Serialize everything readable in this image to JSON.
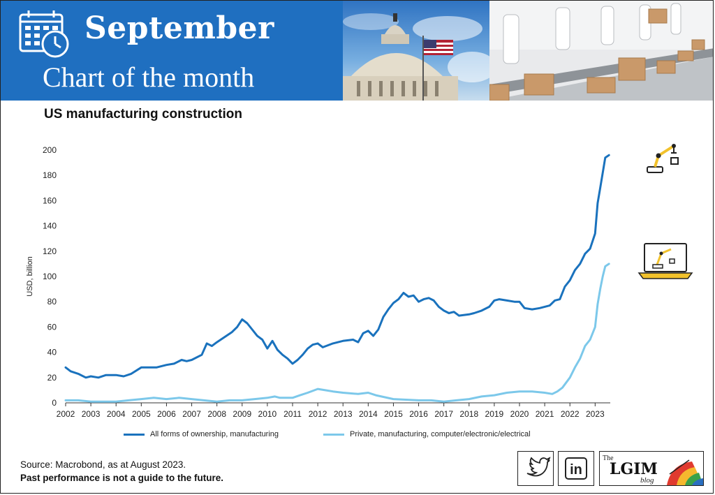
{
  "banner": {
    "headline": "September",
    "subheadline": "Chart of the month",
    "bg_color": "#1f6fc0"
  },
  "icons": {
    "calendar": "calendar-clock-icon",
    "robot_arm": "robot-arm-icon",
    "robot_laptop": "robot-laptop-icon",
    "twitter": "twitter-bird-icon",
    "linkedin": "linkedin-icon"
  },
  "footer": {
    "source": "Source: Macrobond, as at August 2023.",
    "disclaimer": "Past performance is not a guide to the future."
  },
  "social": {
    "linkedin_label": "in",
    "blog_the": "The",
    "blog_name": "LGIM",
    "blog_word": "blog"
  },
  "chart_data": {
    "type": "line",
    "title": "US manufacturing construction",
    "ylabel": "USD, billion",
    "xlabel": "",
    "ylim": [
      0,
      200
    ],
    "yticks": [
      0,
      20,
      40,
      60,
      80,
      100,
      120,
      140,
      160,
      180,
      200
    ],
    "xlim": [
      2002,
      2023.6
    ],
    "xticks": [
      "2002",
      "2003",
      "2004",
      "2005",
      "2006",
      "2007",
      "2008",
      "2009",
      "2010",
      "2011",
      "2012",
      "2013",
      "2014",
      "2015",
      "2016",
      "2017",
      "2018",
      "2019",
      "2020",
      "2021",
      "2022",
      "2023"
    ],
    "grid": false,
    "legend_position": "bottom",
    "series": [
      {
        "name": "All forms of ownership, manufacturing",
        "color": "#1a72bd",
        "points": [
          [
            2002.0,
            28
          ],
          [
            2002.2,
            25
          ],
          [
            2002.5,
            23
          ],
          [
            2002.8,
            20
          ],
          [
            2003.0,
            21
          ],
          [
            2003.3,
            20
          ],
          [
            2003.6,
            22
          ],
          [
            2004.0,
            22
          ],
          [
            2004.3,
            21
          ],
          [
            2004.6,
            23
          ],
          [
            2005.0,
            28
          ],
          [
            2005.3,
            28
          ],
          [
            2005.6,
            28
          ],
          [
            2006.0,
            30
          ],
          [
            2006.3,
            31
          ],
          [
            2006.6,
            34
          ],
          [
            2006.8,
            33
          ],
          [
            2007.0,
            34
          ],
          [
            2007.4,
            38
          ],
          [
            2007.6,
            47
          ],
          [
            2007.8,
            45
          ],
          [
            2008.0,
            48
          ],
          [
            2008.3,
            52
          ],
          [
            2008.6,
            56
          ],
          [
            2008.8,
            60
          ],
          [
            2009.0,
            66
          ],
          [
            2009.2,
            63
          ],
          [
            2009.4,
            58
          ],
          [
            2009.6,
            53
          ],
          [
            2009.8,
            50
          ],
          [
            2010.0,
            43
          ],
          [
            2010.2,
            49
          ],
          [
            2010.4,
            42
          ],
          [
            2010.6,
            38
          ],
          [
            2010.8,
            35
          ],
          [
            2011.0,
            31
          ],
          [
            2011.2,
            34
          ],
          [
            2011.4,
            38
          ],
          [
            2011.6,
            43
          ],
          [
            2011.8,
            46
          ],
          [
            2012.0,
            47
          ],
          [
            2012.2,
            44
          ],
          [
            2012.6,
            47
          ],
          [
            2013.0,
            49
          ],
          [
            2013.4,
            50
          ],
          [
            2013.6,
            48
          ],
          [
            2013.8,
            55
          ],
          [
            2014.0,
            57
          ],
          [
            2014.2,
            53
          ],
          [
            2014.4,
            58
          ],
          [
            2014.6,
            68
          ],
          [
            2014.8,
            74
          ],
          [
            2015.0,
            79
          ],
          [
            2015.2,
            82
          ],
          [
            2015.4,
            87
          ],
          [
            2015.6,
            84
          ],
          [
            2015.8,
            85
          ],
          [
            2016.0,
            80
          ],
          [
            2016.2,
            82
          ],
          [
            2016.4,
            83
          ],
          [
            2016.6,
            81
          ],
          [
            2016.8,
            76
          ],
          [
            2017.0,
            73
          ],
          [
            2017.2,
            71
          ],
          [
            2017.4,
            72
          ],
          [
            2017.6,
            69
          ],
          [
            2018.0,
            70
          ],
          [
            2018.2,
            71
          ],
          [
            2018.5,
            73
          ],
          [
            2018.8,
            76
          ],
          [
            2019.0,
            81
          ],
          [
            2019.2,
            82
          ],
          [
            2019.5,
            81
          ],
          [
            2019.8,
            80
          ],
          [
            2020.0,
            80
          ],
          [
            2020.2,
            75
          ],
          [
            2020.5,
            74
          ],
          [
            2020.8,
            75
          ],
          [
            2021.0,
            76
          ],
          [
            2021.2,
            77
          ],
          [
            2021.4,
            81
          ],
          [
            2021.6,
            82
          ],
          [
            2021.8,
            92
          ],
          [
            2022.0,
            97
          ],
          [
            2022.2,
            105
          ],
          [
            2022.4,
            110
          ],
          [
            2022.6,
            118
          ],
          [
            2022.8,
            122
          ],
          [
            2023.0,
            134
          ],
          [
            2023.1,
            158
          ],
          [
            2023.2,
            170
          ],
          [
            2023.3,
            182
          ],
          [
            2023.4,
            194
          ],
          [
            2023.55,
            196
          ]
        ]
      },
      {
        "name": "Private, manufacturing, computer/electronic/electrical",
        "color": "#7cc8ea",
        "points": [
          [
            2002.0,
            2
          ],
          [
            2002.5,
            2
          ],
          [
            2003.0,
            1
          ],
          [
            2004.0,
            1
          ],
          [
            2004.5,
            2
          ],
          [
            2005.0,
            3
          ],
          [
            2005.5,
            4
          ],
          [
            2006.0,
            3
          ],
          [
            2006.5,
            4
          ],
          [
            2007.0,
            3
          ],
          [
            2008.0,
            1
          ],
          [
            2008.5,
            2
          ],
          [
            2009.0,
            2
          ],
          [
            2009.5,
            3
          ],
          [
            2010.0,
            4
          ],
          [
            2010.3,
            5
          ],
          [
            2010.5,
            4
          ],
          [
            2011.0,
            4
          ],
          [
            2011.3,
            6
          ],
          [
            2011.6,
            8
          ],
          [
            2012.0,
            11
          ],
          [
            2012.3,
            10
          ],
          [
            2012.6,
            9
          ],
          [
            2013.0,
            8
          ],
          [
            2013.6,
            7
          ],
          [
            2014.0,
            8
          ],
          [
            2014.3,
            6
          ],
          [
            2015.0,
            3
          ],
          [
            2016.0,
            2
          ],
          [
            2016.5,
            2
          ],
          [
            2017.0,
            1
          ],
          [
            2017.5,
            2
          ],
          [
            2018.0,
            3
          ],
          [
            2018.5,
            5
          ],
          [
            2019.0,
            6
          ],
          [
            2019.5,
            8
          ],
          [
            2020.0,
            9
          ],
          [
            2020.5,
            9
          ],
          [
            2021.0,
            8
          ],
          [
            2021.3,
            7
          ],
          [
            2021.5,
            9
          ],
          [
            2021.7,
            12
          ],
          [
            2022.0,
            20
          ],
          [
            2022.2,
            28
          ],
          [
            2022.4,
            35
          ],
          [
            2022.6,
            45
          ],
          [
            2022.8,
            50
          ],
          [
            2023.0,
            60
          ],
          [
            2023.1,
            78
          ],
          [
            2023.2,
            90
          ],
          [
            2023.3,
            100
          ],
          [
            2023.4,
            108
          ],
          [
            2023.55,
            110
          ]
        ]
      }
    ]
  }
}
